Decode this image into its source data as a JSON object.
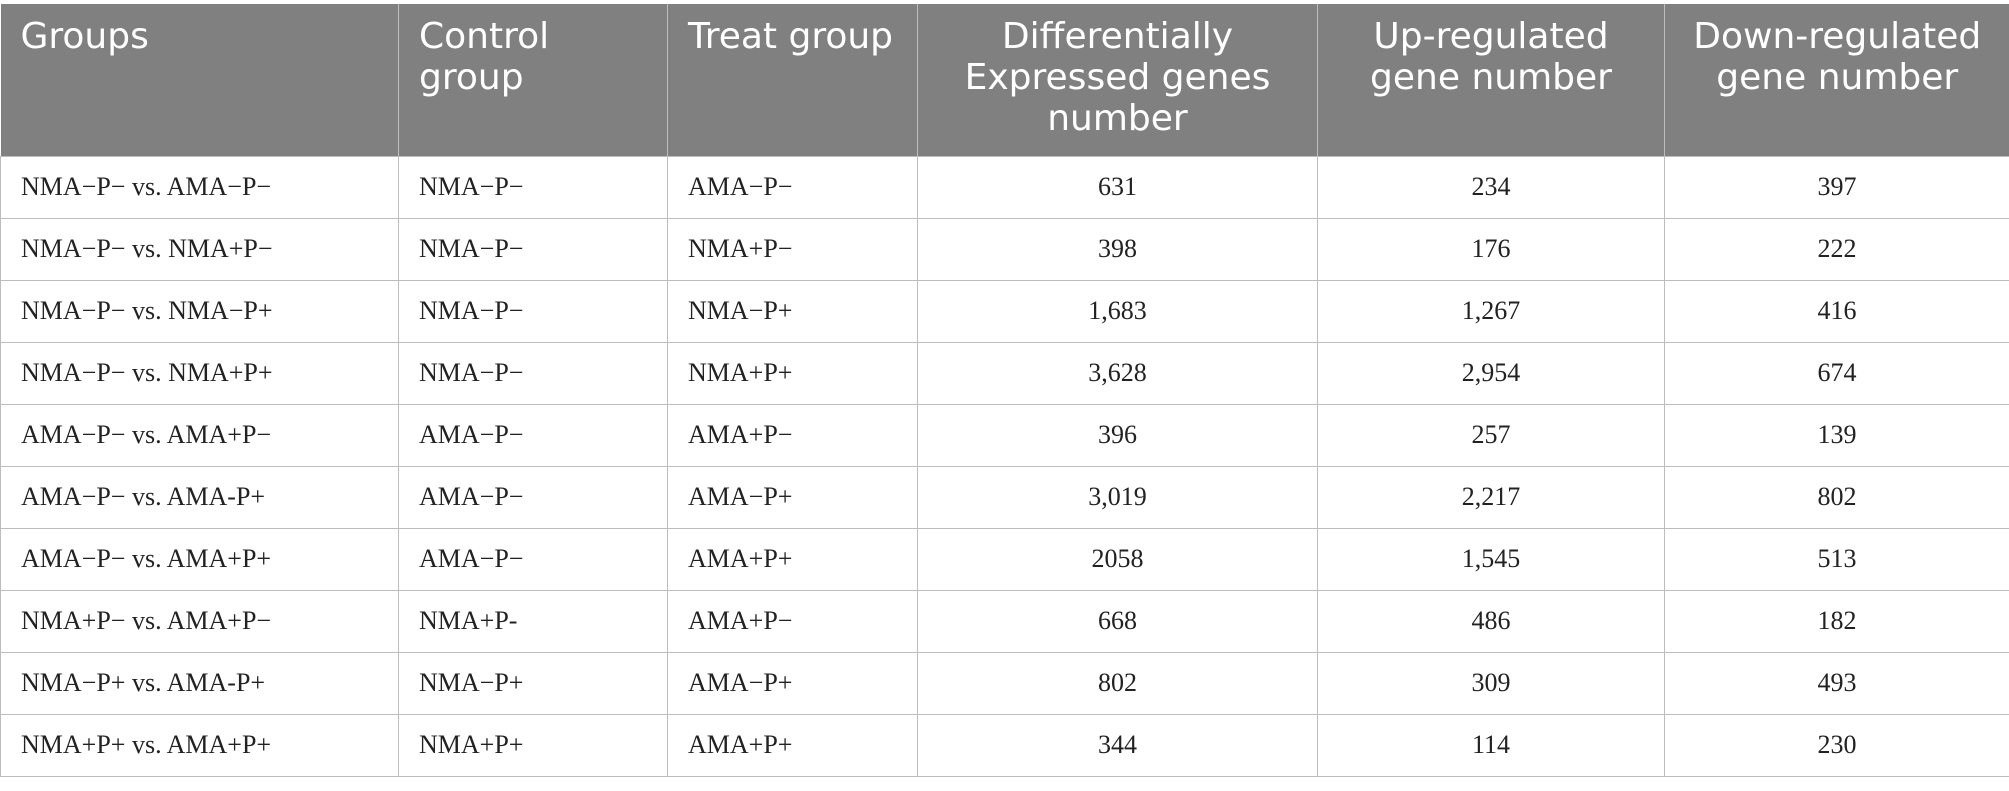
{
  "table": {
    "headers": [
      "Groups",
      "Control group",
      "Treat group",
      "Differentially Expressed genes number",
      "Up-regulated gene number",
      "Down-regulated gene number"
    ],
    "rows": [
      [
        "NMA−P− vs. AMA−P−",
        "NMA−P−",
        "AMA−P−",
        "631",
        "234",
        "397"
      ],
      [
        "NMA−P− vs. NMA+P−",
        "NMA−P−",
        "NMA+P−",
        "398",
        "176",
        "222"
      ],
      [
        "NMA−P− vs. NMA−P+",
        "NMA−P−",
        "NMA−P+",
        "1,683",
        "1,267",
        "416"
      ],
      [
        "NMA−P− vs. NMA+P+",
        "NMA−P−",
        "NMA+P+",
        "3,628",
        "2,954",
        "674"
      ],
      [
        "AMA−P− vs. AMA+P−",
        "AMA−P−",
        "AMA+P−",
        "396",
        "257",
        "139"
      ],
      [
        "AMA−P− vs. AMA-P+",
        "AMA−P−",
        "AMA−P+",
        "3,019",
        "2,217",
        "802"
      ],
      [
        "AMA−P− vs. AMA+P+",
        "AMA−P−",
        "AMA+P+",
        "2058",
        "1,545",
        "513"
      ],
      [
        "NMA+P− vs. AMA+P−",
        "NMA+P-",
        "AMA+P−",
        "668",
        "486",
        "182"
      ],
      [
        "NMA−P+ vs. AMA-P+",
        "NMA−P+",
        "AMA−P+",
        "802",
        "309",
        "493"
      ],
      [
        "NMA+P+ vs. AMA+P+",
        "NMA+P+",
        "AMA+P+",
        "344",
        "114",
        "230"
      ]
    ]
  }
}
